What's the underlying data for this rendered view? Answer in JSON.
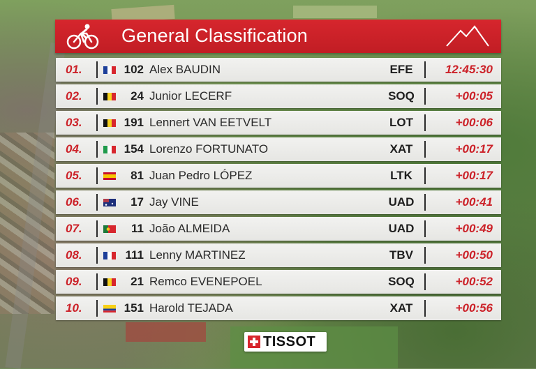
{
  "header": {
    "title": "General Classification"
  },
  "rows": [
    {
      "pos": "01.",
      "flag": "fr",
      "num": "102",
      "rider": "Alex BAUDIN",
      "team": "EFE",
      "time": "12:45:30"
    },
    {
      "pos": "02.",
      "flag": "be",
      "num": "24",
      "rider": "Junior LECERF",
      "team": "SOQ",
      "time": "+00:05"
    },
    {
      "pos": "03.",
      "flag": "be",
      "num": "191",
      "rider": "Lennert VAN EETVELT",
      "team": "LOT",
      "time": "+00:06"
    },
    {
      "pos": "04.",
      "flag": "it",
      "num": "154",
      "rider": "Lorenzo FORTUNATO",
      "team": "XAT",
      "time": "+00:17"
    },
    {
      "pos": "05.",
      "flag": "es",
      "num": "81",
      "rider": "Juan Pedro LÓPEZ",
      "team": "LTK",
      "time": "+00:17"
    },
    {
      "pos": "06.",
      "flag": "au",
      "num": "17",
      "rider": "Jay VINE",
      "team": "UAD",
      "time": "+00:41"
    },
    {
      "pos": "07.",
      "flag": "pt",
      "num": "11",
      "rider": "João ALMEIDA",
      "team": "UAD",
      "time": "+00:49"
    },
    {
      "pos": "08.",
      "flag": "fr",
      "num": "111",
      "rider": "Lenny MARTINEZ",
      "team": "TBV",
      "time": "+00:50"
    },
    {
      "pos": "09.",
      "flag": "be",
      "num": "21",
      "rider": "Remco EVENEPOEL",
      "team": "SOQ",
      "time": "+00:52"
    },
    {
      "pos": "10.",
      "flag": "co",
      "num": "151",
      "rider": "Harold TEJADA",
      "team": "XAT",
      "time": "+00:56"
    }
  ],
  "sponsor": {
    "name": "TISSOT"
  },
  "colors": {
    "accent": "#cc2229",
    "header": "#c11d24",
    "row": "#eeeeec"
  }
}
